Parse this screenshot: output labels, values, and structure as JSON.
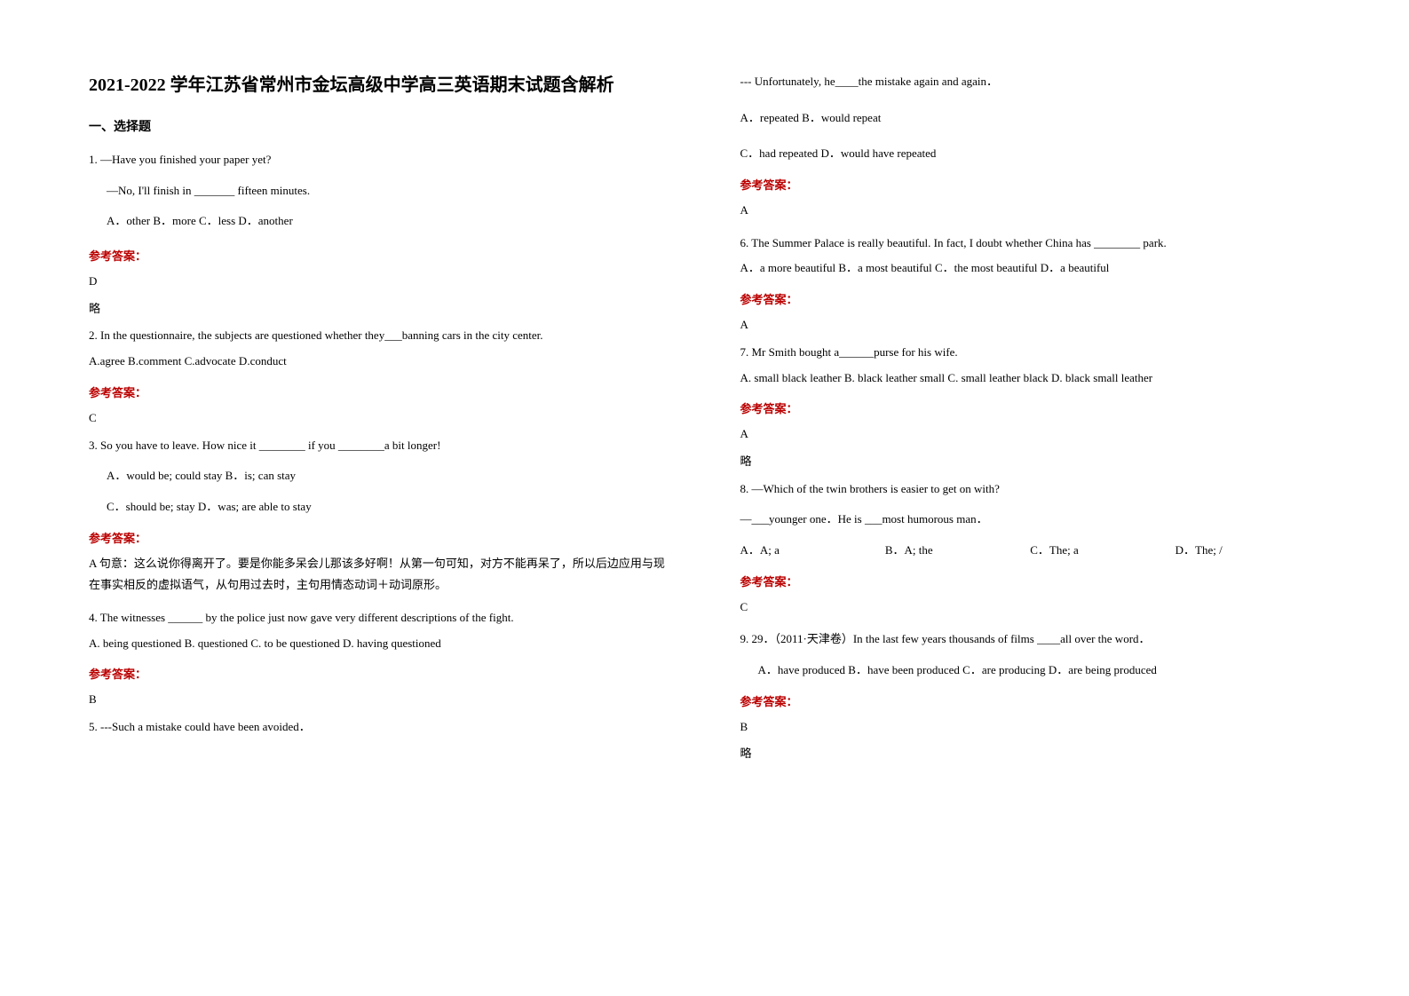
{
  "title": "2021-2022 学年江苏省常州市金坛高级中学高三英语期末试题含解析",
  "section1_header": "一、选择题",
  "answer_label": "参考答案：",
  "brief": "略",
  "q1": {
    "line1": "1. —Have you finished your paper yet?",
    "line2": "—No, I'll finish in _______ fifteen minutes.",
    "options": "A．other   B．more   C．less   D．another",
    "answer": "D"
  },
  "q2": {
    "line1": "2. In the questionnaire, the subjects are questioned whether they___banning cars in the city center.",
    "options": "A.agree B.comment    C.advocate    D.conduct",
    "answer": "C"
  },
  "q3": {
    "line1": "3. So you have to leave. How nice it ________ if you ________a bit longer!",
    "opt1": "A．would be; could stay   B．is; can stay",
    "opt2": "C．should be; stay     D．was; are able to stay",
    "answer": "A   句意：这么说你得离开了。要是你能多呆会儿那该多好啊！从第一句可知，对方不能再呆了，所以后边应用与现在事实相反的虚拟语气，从句用过去时，主句用情态动词＋动词原形。"
  },
  "q4": {
    "line1": "4. The witnesses ______ by the police just now gave very different descriptions of the fight.",
    "options": "A. being questioned    B. questioned         C. to be questioned   D. having questioned",
    "answer": "B"
  },
  "q5": {
    "line1": "5. ---Such a mistake could have been avoided．",
    "line2": "--- Unfortunately, he____the mistake again and again．",
    "opt1": "A．repeated     B．would repeat",
    "opt2": "C．had repeated   D．would have repeated",
    "answer": "A"
  },
  "q6": {
    "line1": "6. The Summer Palace is really beautiful. In fact, I doubt whether China has ________ park.",
    "options": "A．a more beautiful  B．a most beautiful  C．the most beautiful  D．a beautiful",
    "answer": "A"
  },
  "q7": {
    "line1": "7. Mr Smith bought a______purse for his wife.",
    "options": "A. small black leather   B. black leather small   C. small leather black    D. black small leather",
    "answer": "A"
  },
  "q8": {
    "line1": "8. —Which of the twin brothers is easier to get on with?",
    "line2": "—___younger one．He is ___most humorous man．",
    "optA": "A．A; a",
    "optB": "B．A; the",
    "optC": "C．The; a",
    "optD": "D．The; /",
    "answer": "C"
  },
  "q9": {
    "line1": "9. 29．（2011·天津卷）In the last few years thousands of films ____all over the word．",
    "options": "A．have produced    B．have been produced  C．are producing    D．are being produced",
    "answer": "B"
  },
  "colors": {
    "text": "#000000",
    "answer_label": "#bb0000",
    "background": "#ffffff"
  },
  "typography": {
    "title_fontsize": 20,
    "body_fontsize": 13,
    "section_fontsize": 14,
    "font_family": "SimSun"
  }
}
